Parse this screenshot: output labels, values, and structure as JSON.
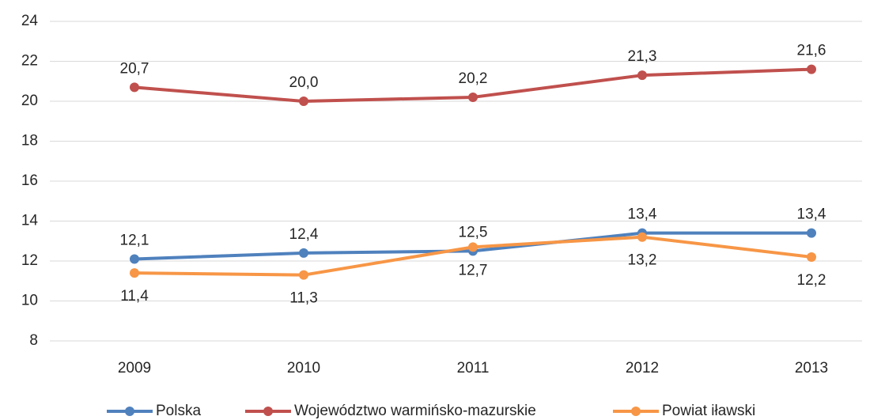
{
  "chart_data": {
    "type": "line",
    "categories": [
      "2009",
      "2010",
      "2011",
      "2012",
      "2013"
    ],
    "series": [
      {
        "name": "Polska",
        "color": "#4f81bd",
        "values": [
          12.1,
          12.4,
          12.5,
          13.4,
          13.4
        ],
        "value_labels": [
          "12,1",
          "12,4",
          "12,5",
          "13,4",
          "13,4"
        ]
      },
      {
        "name": "Województwo warmińsko-mazurskie",
        "color": "#c0504d",
        "values": [
          20.7,
          20.0,
          20.2,
          21.3,
          21.6
        ],
        "value_labels": [
          "20,7",
          "20,0",
          "20,2",
          "21,3",
          "21,6"
        ]
      },
      {
        "name": "Powiat iławski",
        "color": "#f79646",
        "values": [
          11.4,
          11.3,
          12.7,
          13.2,
          12.2
        ],
        "value_labels": [
          "11,4",
          "11,3",
          "12,7",
          "13,2",
          "12,2"
        ]
      }
    ],
    "ylim": [
      8,
      24
    ],
    "yticks": [
      8,
      10,
      12,
      14,
      16,
      18,
      20,
      22,
      24
    ],
    "grid": true,
    "legend": "bottom"
  }
}
